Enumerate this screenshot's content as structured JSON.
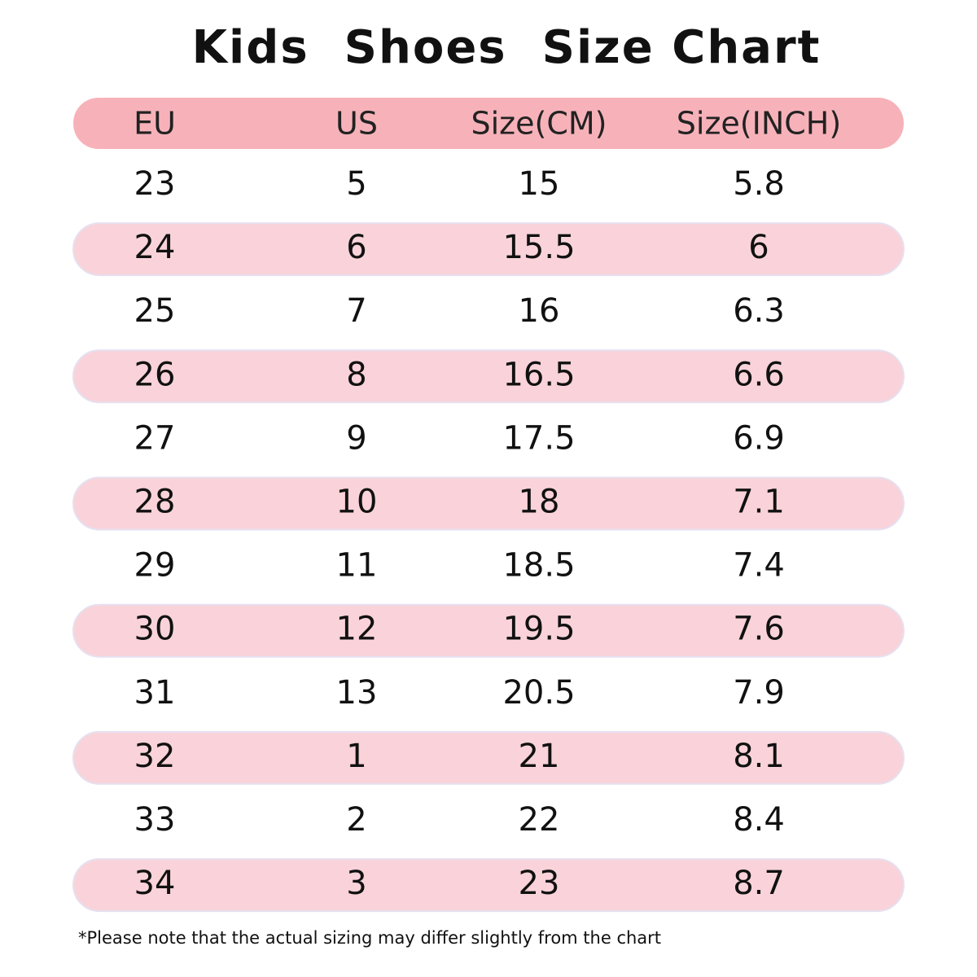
{
  "title": "Kids  Shoes  Size Chart",
  "table": {
    "header": [
      "EU",
      "US",
      "Size(CM)",
      "Size(INCH)"
    ],
    "rows": [
      [
        "23",
        "5",
        "15",
        "5.8"
      ],
      [
        "24",
        "6",
        "15.5",
        "6"
      ],
      [
        "25",
        "7",
        "16",
        "6.3"
      ],
      [
        "26",
        "8",
        "16.5",
        "6.6"
      ],
      [
        "27",
        "9",
        "17.5",
        "6.9"
      ],
      [
        "28",
        "10",
        "18",
        "7.1"
      ],
      [
        "29",
        "11",
        "18.5",
        "7.4"
      ],
      [
        "30",
        "12",
        "19.5",
        "7.6"
      ],
      [
        "31",
        "13",
        "20.5",
        "7.9"
      ],
      [
        "32",
        "1",
        "21",
        "8.1"
      ],
      [
        "33",
        "2",
        "22",
        "8.4"
      ],
      [
        "34",
        "3",
        "23",
        "8.7"
      ]
    ]
  },
  "footnote": "*Please note that the actual sizing may differ slightly from the chart"
}
